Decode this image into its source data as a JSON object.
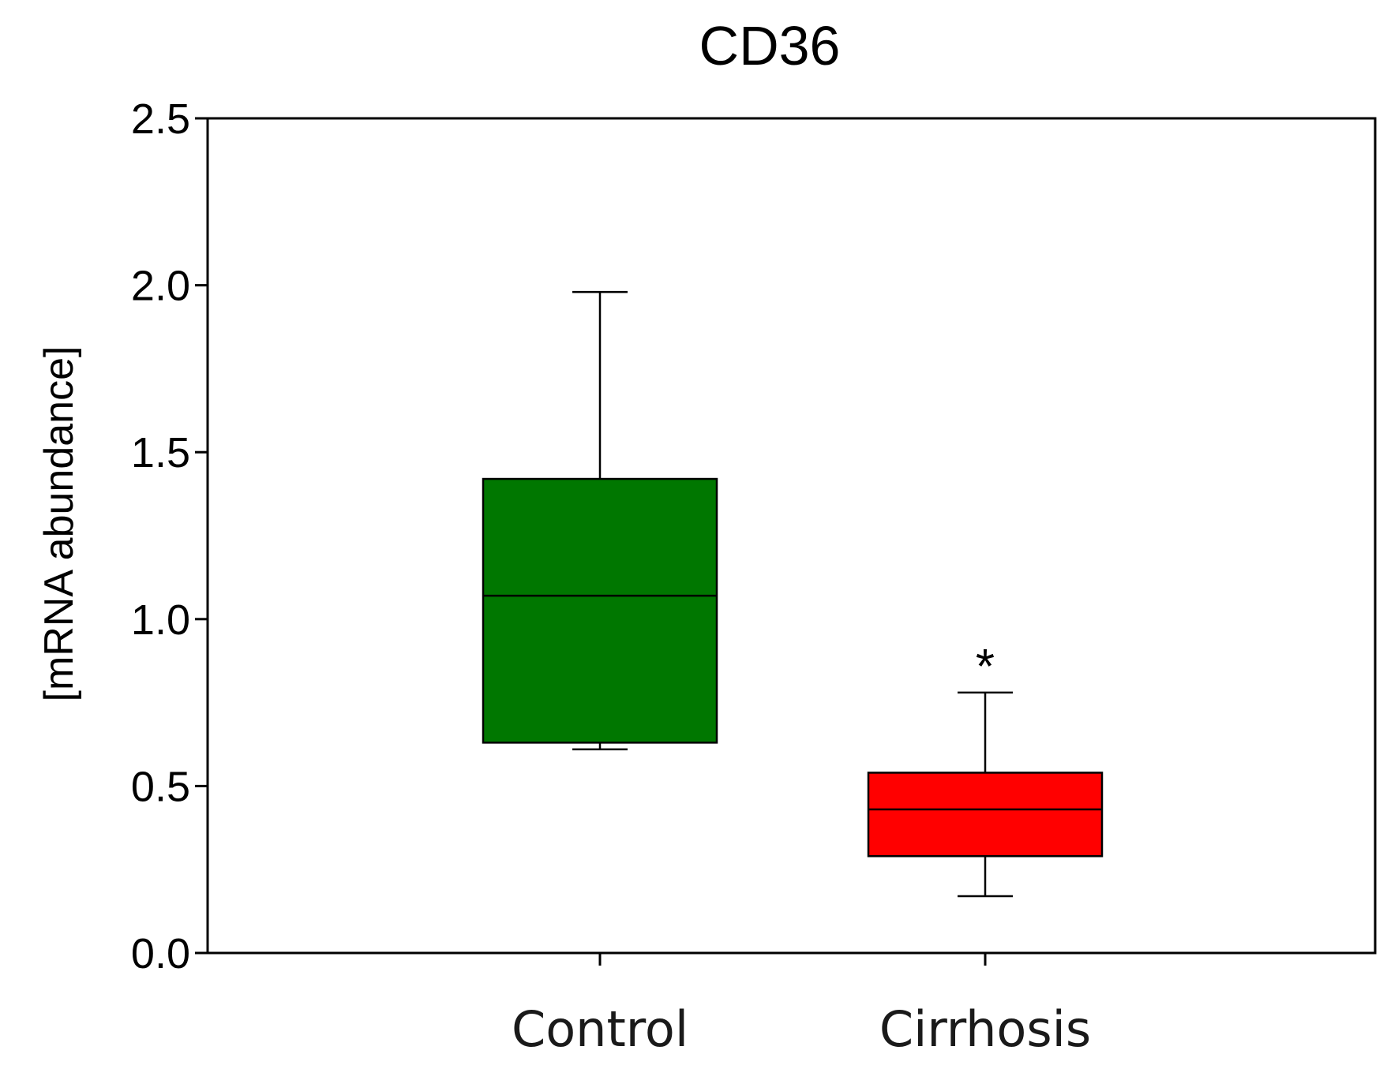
{
  "chart_data": {
    "type": "box",
    "title": "CD36",
    "xlabel": "",
    "ylabel": "[mRNA abundance]",
    "ylim": [
      0,
      2.5
    ],
    "yticks": [
      0.0,
      0.5,
      1.0,
      1.5,
      2.0,
      2.5
    ],
    "ytick_labels": [
      "0.0",
      "0.5",
      "1.0",
      "1.5",
      "2.0",
      "2.5"
    ],
    "categories": [
      "Control",
      "Cirrhosis"
    ],
    "series": [
      {
        "name": "Control",
        "color": "#007700",
        "whisker_low": 0.61,
        "q1": 0.63,
        "median": 1.07,
        "q3": 1.42,
        "whisker_high": 1.98,
        "annotation": ""
      },
      {
        "name": "Cirrhosis",
        "color": "#ff0000",
        "whisker_low": 0.17,
        "q1": 0.29,
        "median": 0.43,
        "q3": 0.54,
        "whisker_high": 0.78,
        "annotation": "*"
      }
    ],
    "grid": false,
    "legend": "none"
  }
}
